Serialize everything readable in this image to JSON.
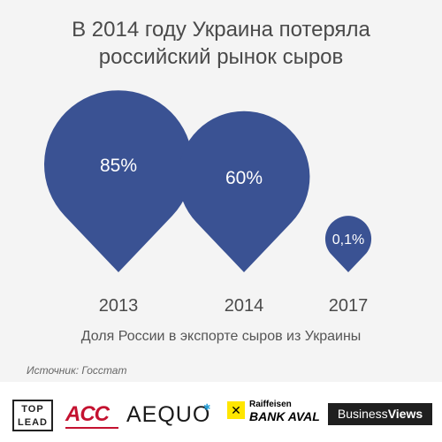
{
  "title_line1": "В 2014 году Украина потеряла",
  "title_line2": "российский рынок сыров",
  "caption": "Доля России в экспорте сыров из Украины",
  "source": "Источник: Госстат",
  "colors": {
    "drop": "#3a5293",
    "background": "#f4f4f4",
    "text": "#4a4a4a"
  },
  "chart_data": {
    "type": "bar",
    "title": "В 2014 году Украина потеряла российский рынок сыров",
    "xlabel": "Доля России в экспорте сыров из Украины",
    "categories": [
      "2013",
      "2014",
      "2017"
    ],
    "values": [
      85,
      60,
      0.1
    ],
    "value_labels": [
      "85%",
      "60%",
      "0,1%"
    ],
    "unit": "%",
    "marker": "map-pin-drop"
  },
  "logos": {
    "toplead_top": "TOP",
    "toplead_bottom": "LEAD",
    "acc": "ACC",
    "aequo": "AEQUO",
    "raif_top": "Raiffeisen",
    "raif_bottom": "BANK AVAL",
    "bv_part1": "Business",
    "bv_part2": "Views"
  }
}
